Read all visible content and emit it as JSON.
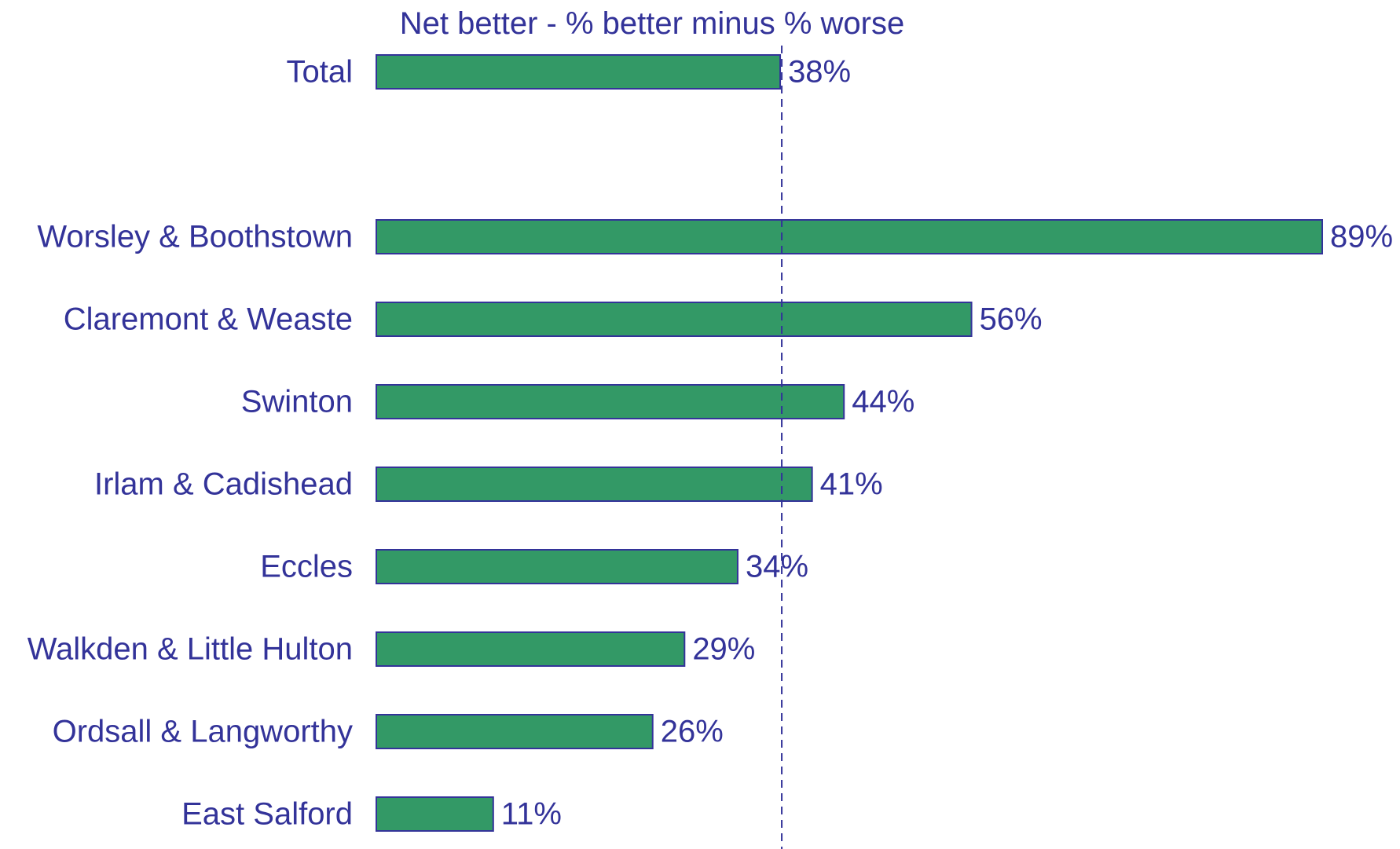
{
  "chart_data": {
    "type": "bar",
    "orientation": "horizontal",
    "title": "Net better - % better minus % worse",
    "categories": [
      "Total",
      "",
      "Worsley & Boothstown",
      "Claremont & Weaste",
      "Swinton",
      "Irlam & Cadishead",
      "Eccles",
      "Walkden & Little Hulton",
      "Ordsall & Langworthy",
      "East Salford"
    ],
    "values": [
      38,
      null,
      89,
      56,
      44,
      41,
      34,
      29,
      26,
      11
    ],
    "value_labels": [
      "38%",
      "",
      "89%",
      "56%",
      "44%",
      "41%",
      "34%",
      "29%",
      "26%",
      "11%"
    ],
    "reference_line": {
      "value": 38,
      "style": "dashed"
    },
    "xlim": [
      0,
      89
    ],
    "grid": false,
    "legend": "none",
    "colors": {
      "bar_fill": "#339966",
      "bar_stroke": "#333399",
      "text": "#333399",
      "reference_line": "#333399"
    }
  }
}
